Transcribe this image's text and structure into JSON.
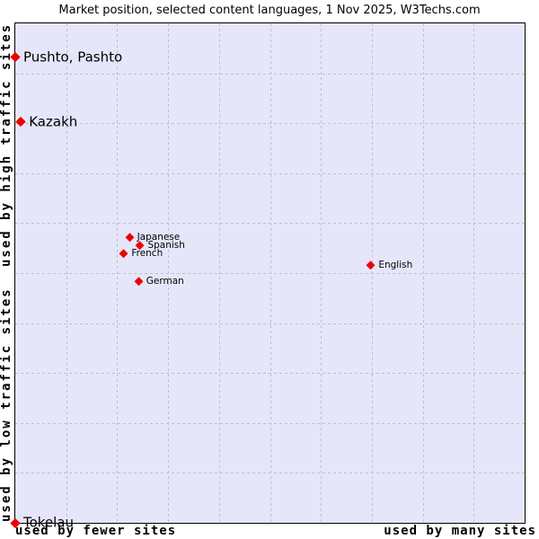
{
  "title": "Market position, selected content languages, 1 Nov 2025, W3Techs.com",
  "axes": {
    "y_top": "used by high traffic sites",
    "y_bottom": "used by low traffic sites",
    "x_left": "used by fewer sites",
    "x_right": "used by many sites"
  },
  "colors": {
    "plot_background": "#e6e6fa",
    "grid": "#c0c0c0",
    "border": "#000000",
    "marker": "#ee0000",
    "text": "#000000"
  },
  "chart_data": {
    "type": "scatter",
    "title": "Market position, selected content languages, 1 Nov 2025, W3Techs.com",
    "xlabel": "usage (fewer sites → many sites)",
    "ylabel": "traffic (low → high)",
    "x_axis_left_label": "used by fewer sites",
    "x_axis_right_label": "used by many sites",
    "y_axis_top_label": "used by high traffic sites",
    "y_axis_bottom_label": "used by low traffic sites",
    "grid": {
      "rows": 10,
      "cols": 10,
      "line_style": "dashed"
    },
    "legend": "none",
    "marker": "red-diamond",
    "points": [
      {
        "label": "Pushto, Pashto",
        "x_pct": 0.0,
        "y_pct": 6.8,
        "label_size": "large"
      },
      {
        "label": "Kazakh",
        "x_pct": 1.1,
        "y_pct": 19.7,
        "label_size": "large"
      },
      {
        "label": "Japanese",
        "x_pct": 22.5,
        "y_pct": 42.8,
        "label_size": "small"
      },
      {
        "label": "Spanish",
        "x_pct": 24.6,
        "y_pct": 44.5,
        "label_size": "small"
      },
      {
        "label": "French",
        "x_pct": 21.4,
        "y_pct": 46.1,
        "label_size": "small"
      },
      {
        "label": "German",
        "x_pct": 24.3,
        "y_pct": 51.6,
        "label_size": "small"
      },
      {
        "label": "English",
        "x_pct": 69.9,
        "y_pct": 48.4,
        "label_size": "small"
      },
      {
        "label": "Tokelau",
        "x_pct": 0.0,
        "y_pct": 100.0,
        "label_size": "large"
      }
    ]
  }
}
